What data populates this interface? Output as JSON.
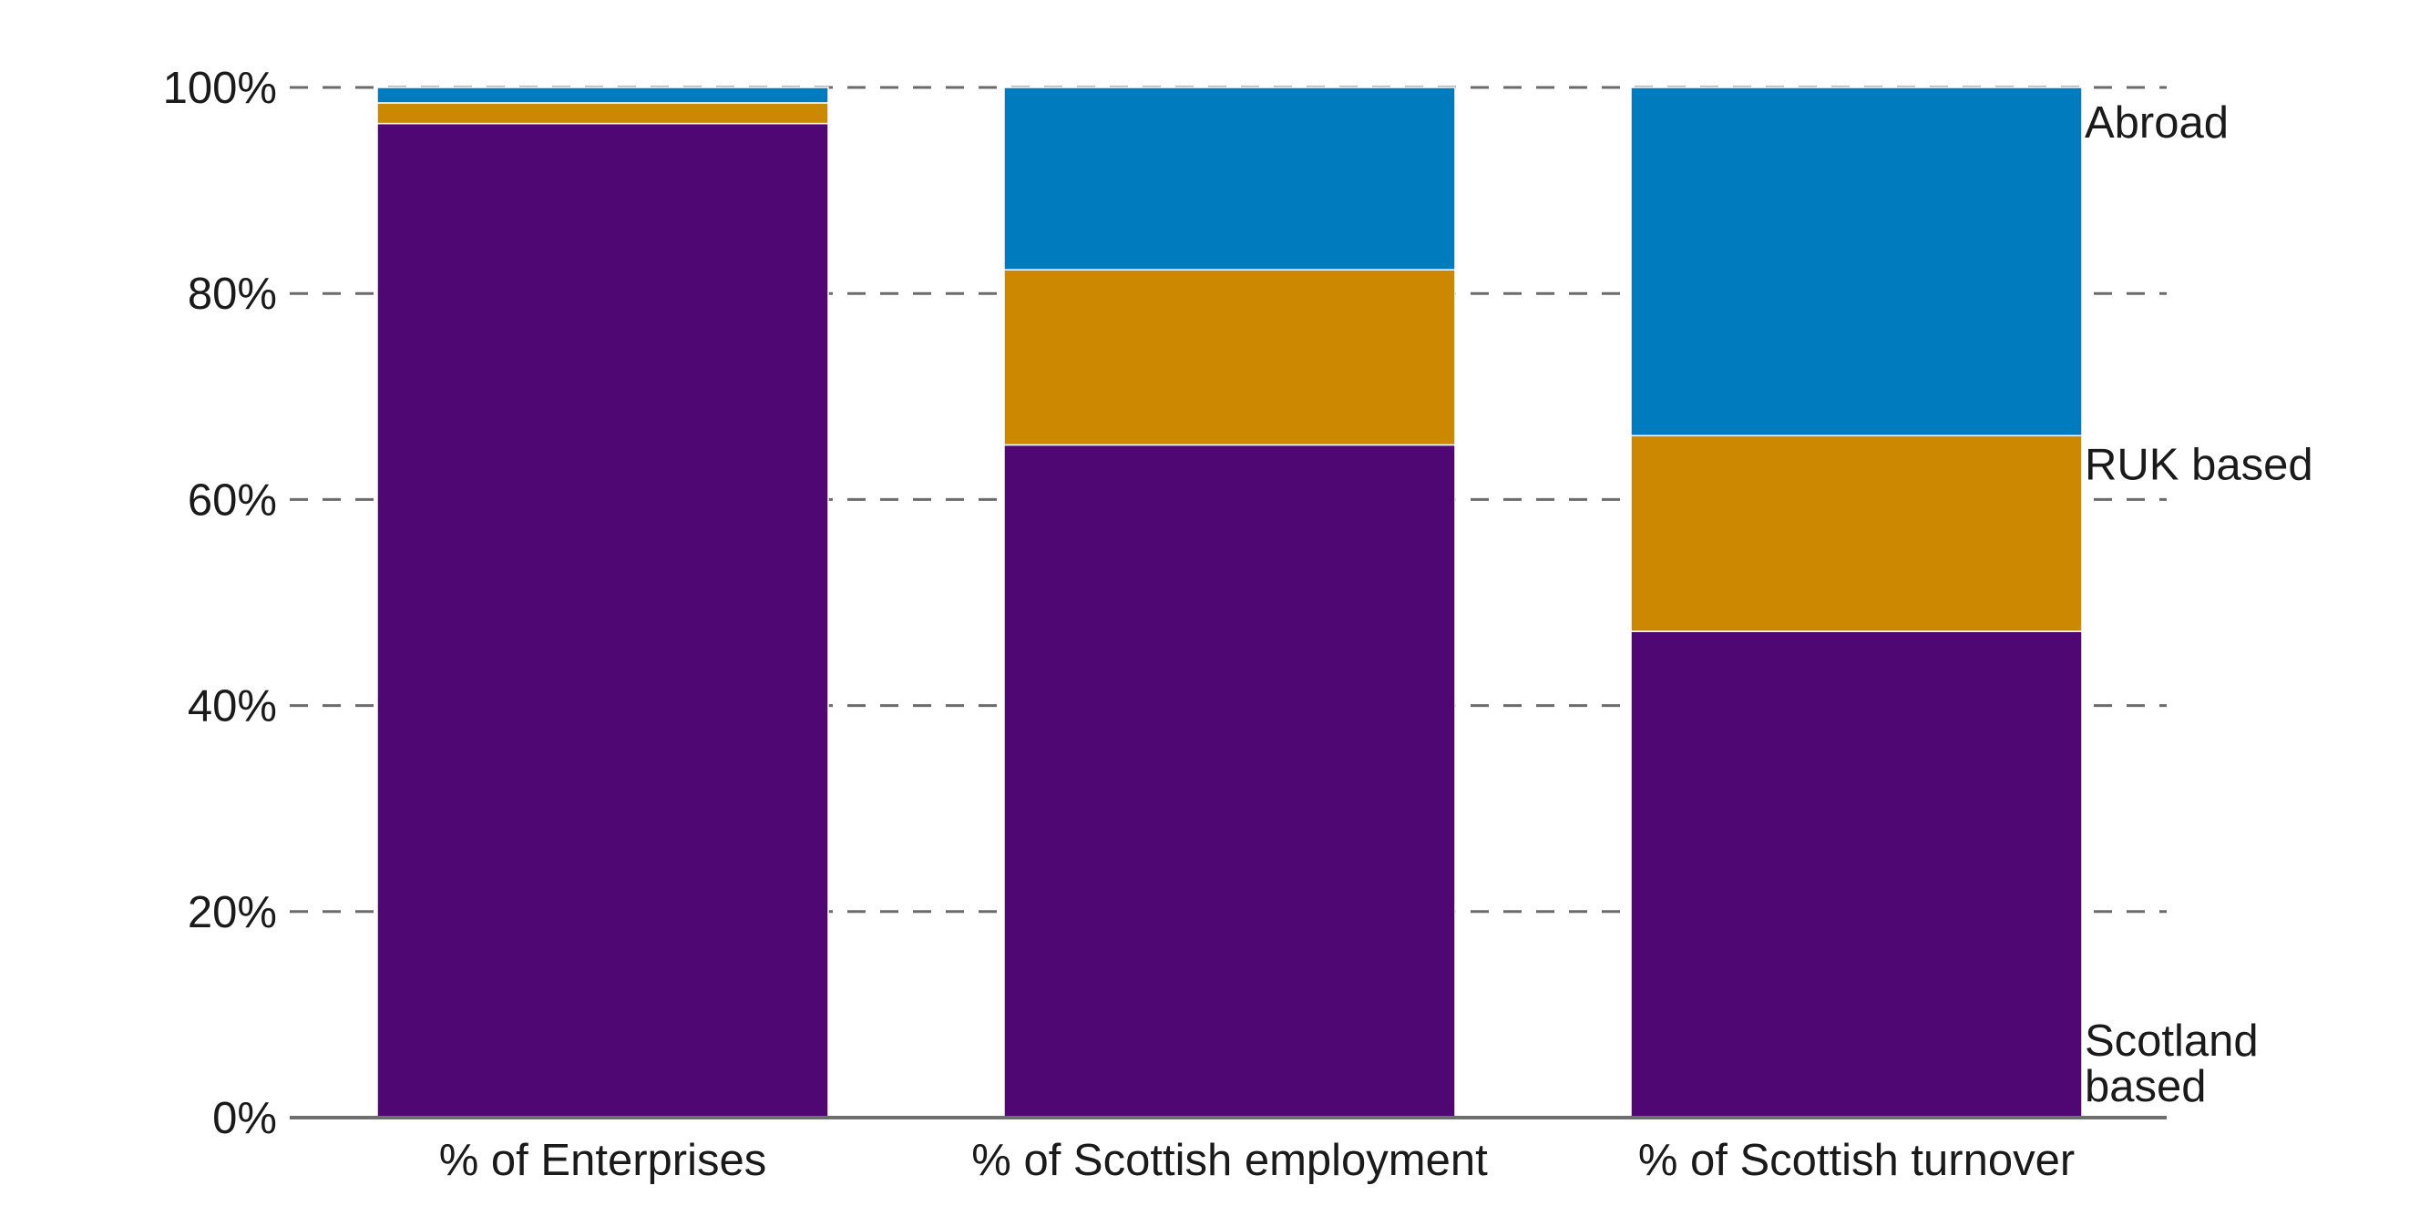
{
  "chart_data": {
    "type": "bar",
    "stacked": true,
    "title": "",
    "xlabel": "",
    "ylabel": "",
    "ylim": [
      0,
      100
    ],
    "y_ticks": [
      "0%",
      "20%",
      "40%",
      "60%",
      "80%",
      "100%"
    ],
    "y_tick_values": [
      0,
      20,
      40,
      60,
      80,
      100
    ],
    "grid": true,
    "categories": [
      "% of Enterprises",
      "% of Scottish employment",
      "% of Scottish turnover"
    ],
    "series": [
      {
        "name": "Scotland based",
        "label_lines": [
          "Scotland",
          "based"
        ],
        "color": "#4f0873",
        "values": [
          96.5,
          65.3,
          47.2
        ]
      },
      {
        "name": "RUK based",
        "label_lines": [
          "RUK based"
        ],
        "color": "#cc8900",
        "values": [
          2.0,
          17.0,
          19.0
        ]
      },
      {
        "name": "Abroad",
        "label_lines": [
          "Abroad"
        ],
        "color": "#007bbd",
        "values": [
          1.5,
          17.7,
          33.8
        ]
      }
    ],
    "legend": "right, inline labels beside last bar"
  }
}
